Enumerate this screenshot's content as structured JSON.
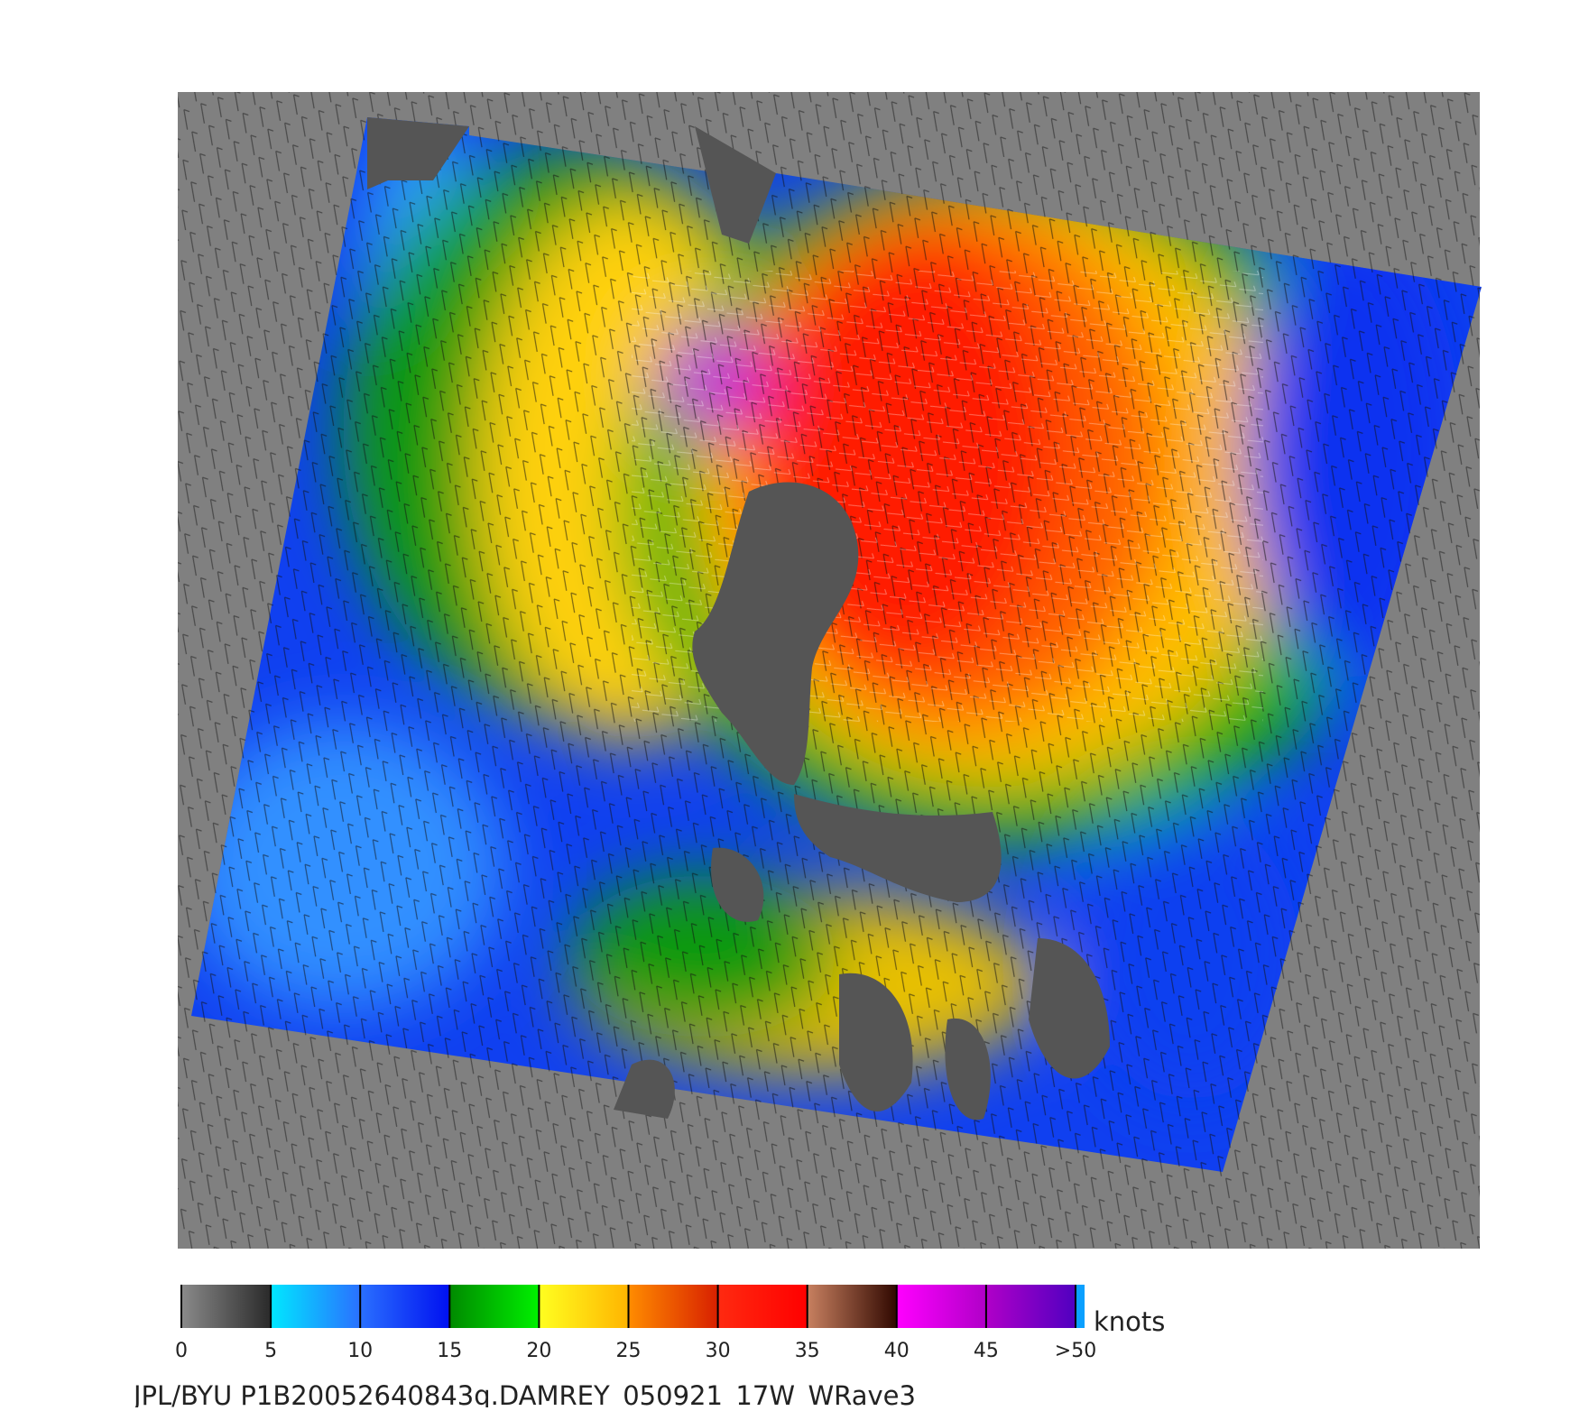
{
  "colorbar": {
    "range": [
      0,
      50
    ],
    "ticks": [
      0,
      5,
      10,
      15,
      20,
      25,
      30,
      35,
      40,
      45,
      {
        "value": 50,
        "label": ">50"
      }
    ],
    "colors": [
      [
        "#8a8a8a",
        "#2a2a2a"
      ],
      [
        "#00e8ff",
        "#2a70ff"
      ],
      [
        "#2a70ff",
        "#0010f0"
      ],
      [
        "#008a00",
        "#00f000"
      ],
      [
        "#ffff20",
        "#ffb400"
      ],
      [
        "#ff8c00",
        "#d82000"
      ],
      [
        "#ff2a10",
        "#ff0000"
      ],
      [
        "#c88060",
        "#300800"
      ],
      [
        "#ff00ff",
        "#b000c8"
      ],
      [
        "#b000c8",
        "#5000c0"
      ]
    ],
    "unit": "knots"
  },
  "caption": "JPL/BYU  P1B20052640843q.DAMREY_050921_17W_WRave3"
}
